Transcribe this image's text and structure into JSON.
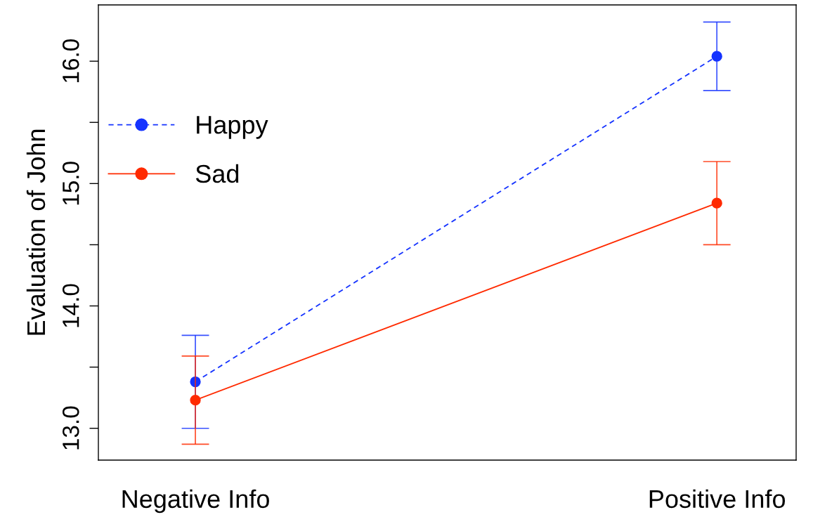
{
  "chart_data": {
    "type": "line",
    "ylabel": "Evaluation of John",
    "categories": [
      "Negative Info",
      "Positive Info"
    ],
    "series": [
      {
        "name": "Happy",
        "color": "#1533ff",
        "values": [
          13.38,
          16.04
        ],
        "errors": [
          0.38,
          0.28
        ],
        "line_style": "dashed"
      },
      {
        "name": "Sad",
        "color": "#ff2a00",
        "values": [
          13.23,
          14.84
        ],
        "errors": [
          0.36,
          0.34
        ],
        "line_style": "solid"
      }
    ],
    "marker": "circle",
    "ylim": [
      12.74,
      16.46
    ],
    "yticks": [
      {
        "value": 13.0,
        "label": "13.0"
      },
      {
        "value": 13.5,
        "label": null
      },
      {
        "value": 14.0,
        "label": "14.0"
      },
      {
        "value": 14.5,
        "label": null
      },
      {
        "value": 15.0,
        "label": "15.0"
      },
      {
        "value": 15.5,
        "label": null
      },
      {
        "value": 16.0,
        "label": "16.0"
      }
    ],
    "grid": false,
    "legend": "top left"
  }
}
